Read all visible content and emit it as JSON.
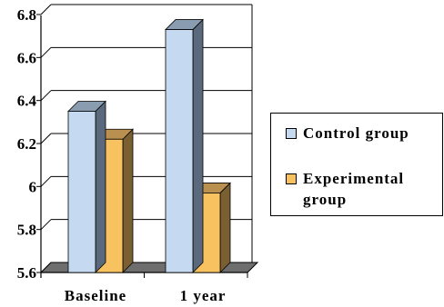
{
  "chart_data": {
    "type": "bar",
    "style": "3d-clustered-column",
    "categories": [
      "Baseline",
      "1 year"
    ],
    "series": [
      {
        "name": "Control group",
        "values": [
          6.35,
          6.73
        ]
      },
      {
        "name": "Experimental group",
        "values": [
          6.22,
          5.97
        ]
      }
    ],
    "ylim": [
      5.6,
      6.8
    ],
    "yticks": [
      "5.6",
      "5.8",
      "6",
      "6.2",
      "6.4",
      "6.6",
      "6.8"
    ],
    "title": "",
    "xlabel": "",
    "ylabel": "",
    "grid": true,
    "legend_position": "right",
    "colors": {
      "control_front": "#c5daf1",
      "control_side": "#5a6a7c",
      "control_top": "#8a9cb0",
      "experimental_front": "#f8c260",
      "experimental_side": "#7a5f33",
      "experimental_top": "#b99050",
      "floor": "#6e6e6e"
    }
  }
}
